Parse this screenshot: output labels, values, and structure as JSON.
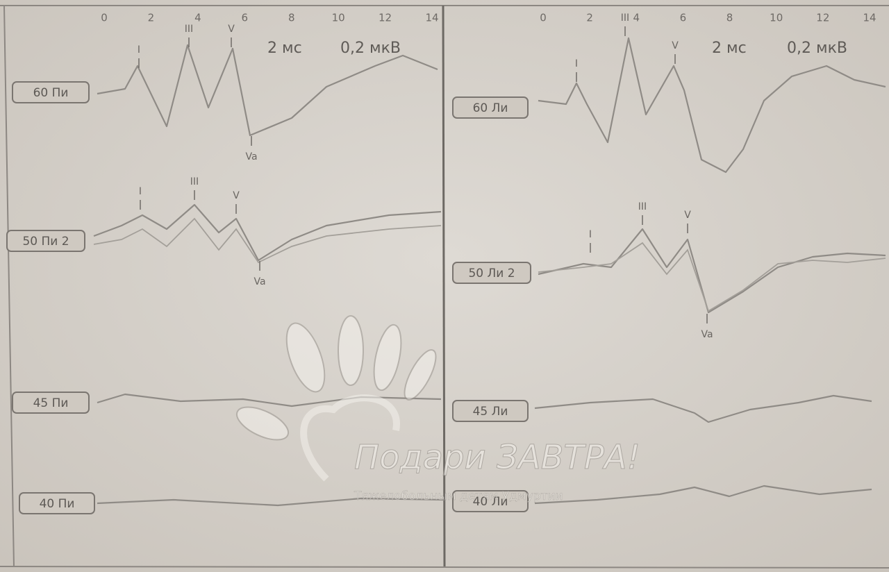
{
  "panels": [
    {
      "ticks": [
        "0",
        "2",
        "4",
        "6",
        "8",
        "10",
        "12",
        "14"
      ],
      "time_scale": "2 мс",
      "amp_scale": "0,2 мкВ",
      "traces": [
        {
          "label": "60 Пи",
          "peaks": [
            "I",
            "III",
            "V",
            "Va"
          ]
        },
        {
          "label": "50 Пи 2",
          "peaks": [
            "I",
            "III",
            "V",
            "Va"
          ]
        },
        {
          "label": "45 Пи",
          "peaks": []
        },
        {
          "label": "40 Пи",
          "peaks": []
        }
      ]
    },
    {
      "ticks": [
        "0",
        "2",
        "4",
        "6",
        "8",
        "10",
        "12",
        "14"
      ],
      "time_scale": "2 мс",
      "amp_scale": "0,2 мкВ",
      "traces": [
        {
          "label": "60 Ли",
          "peaks": [
            "I",
            "III",
            "V"
          ]
        },
        {
          "label": "50 Ли 2",
          "peaks": [
            "I",
            "III",
            "V",
            "Va"
          ]
        },
        {
          "label": "45 Ли",
          "peaks": []
        },
        {
          "label": "40 Ли",
          "peaks": []
        }
      ]
    }
  ],
  "watermark": {
    "title": "Подари ЗАВТРА!",
    "subtitle": "Тяжелобольным детям Удмуртии"
  }
}
